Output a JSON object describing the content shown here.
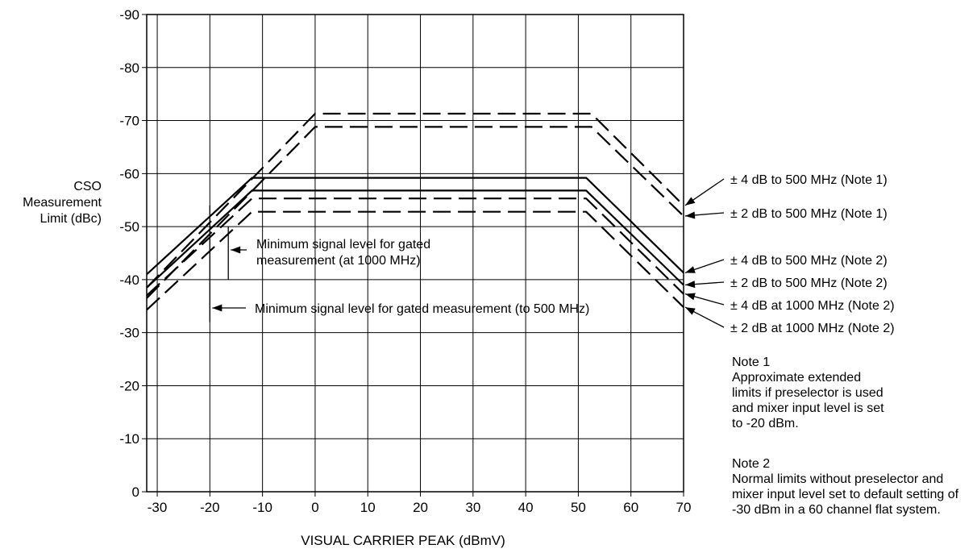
{
  "chart_data": {
    "type": "line",
    "title": "",
    "xlabel": "VISUAL CARRIER PEAK (dBmV)",
    "ylabel": [
      "CSO",
      "Measurement",
      "Limit (dBc)"
    ],
    "xlim": [
      -32,
      70
    ],
    "ylim": [
      0,
      -90
    ],
    "x_ticks": [
      -30,
      -20,
      -10,
      0,
      10,
      20,
      30,
      40,
      50,
      60,
      70
    ],
    "x_tick_labels": [
      "-30",
      "-20",
      "-10",
      "0",
      "10",
      "20",
      "30",
      "40",
      "50",
      "60",
      "70"
    ],
    "y_ticks": [
      -90,
      -80,
      -70,
      -60,
      -50,
      -40,
      -30,
      -20,
      -10,
      0
    ],
    "y_tick_labels": [
      "-90",
      "-80",
      "-70",
      "-60",
      "-50",
      "-40",
      "-30",
      "-20",
      "-10",
      "0"
    ],
    "grid": true,
    "series": [
      {
        "name": "± 4 dB to 500 MHz (Note 1)",
        "style": "dashed",
        "x": [
          -32,
          0,
          52.5,
          70
        ],
        "y": [
          -38.5,
          -71.3,
          -71.3,
          -54
        ]
      },
      {
        "name": "± 2 dB to 500 MHz (Note 1)",
        "style": "dashed",
        "x": [
          -32,
          0,
          52.5,
          70
        ],
        "y": [
          -36.5,
          -68.8,
          -68.8,
          -52
        ]
      },
      {
        "name": "± 4 dB to 500 MHz (Note 2)",
        "style": "solid",
        "x": [
          -32,
          -12,
          51.5,
          70
        ],
        "y": [
          -41,
          -59.2,
          -59.2,
          -41.3
        ]
      },
      {
        "name": "± 2 dB to 500 MHz (Note 2)",
        "style": "solid",
        "x": [
          -32,
          -12,
          51.5,
          70
        ],
        "y": [
          -38.5,
          -56.8,
          -56.8,
          -39
        ]
      },
      {
        "name": "± 4 dB at 1000 MHz (Note 2)",
        "style": "dashed",
        "x": [
          -32,
          -12,
          51.5,
          70
        ],
        "y": [
          -37,
          -55.3,
          -55.3,
          -37.3
        ]
      },
      {
        "name": "± 2 dB at 1000 MHz (Note 2)",
        "style": "dashed",
        "x": [
          -32,
          -12,
          51.5,
          70
        ],
        "y": [
          -34.3,
          -52.8,
          -52.8,
          -34.8
        ]
      }
    ],
    "markers": [
      {
        "label": "Minimum signal level for gated measurement (to 500 MHz)",
        "x": -20,
        "y_range": [
          -32,
          -54
        ]
      },
      {
        "label_lines": [
          "Minimum signal level for gated",
          "measurement (at 1000 MHz)"
        ],
        "x": -16.5,
        "y_range": [
          -40,
          -50
        ]
      }
    ]
  },
  "notes": [
    {
      "title": "Note 1",
      "body": "Approximate extended limits if preselector is used and mixer input level is set to -20 dBm."
    },
    {
      "title": "Note 2",
      "body": "Normal limits without preselector and mixer input level set to default setting of -30 dBm in a 60 channel flat system."
    }
  ],
  "colors": {
    "ink": "#000000",
    "background": "#ffffff"
  }
}
